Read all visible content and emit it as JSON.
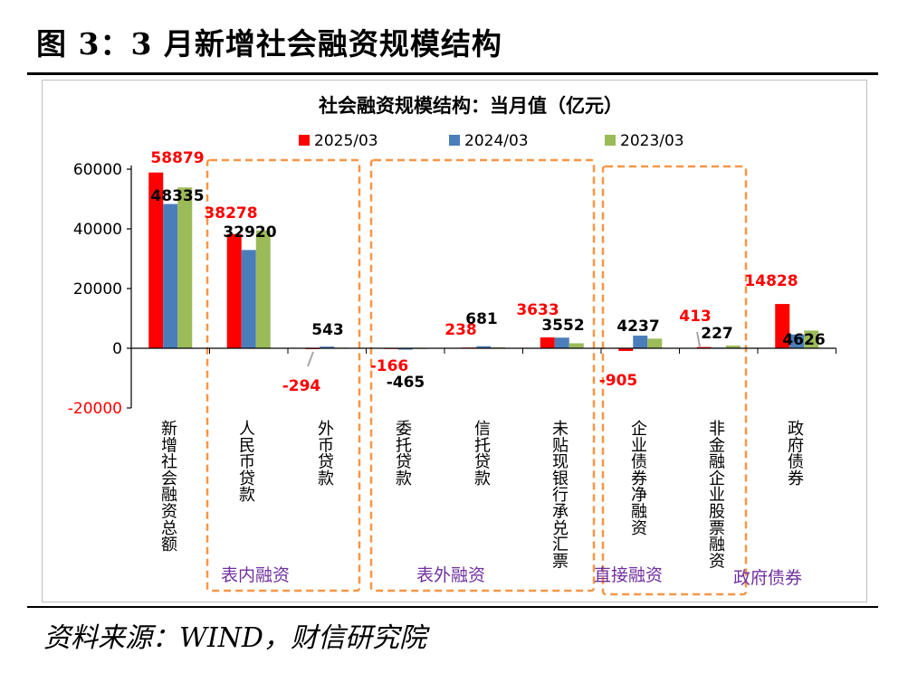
{
  "figure": {
    "title": "图 3：3 月新增社会融资规模结构",
    "source": "资料来源：WIND，财信研究院"
  },
  "colors": {
    "s2025": "#ff0000",
    "s2024": "#4a7ebb",
    "s2023": "#9bbb59",
    "label2025": "#ff0000",
    "label_other": "#000000",
    "group_box": "#f79646",
    "group_label": "#7030a0",
    "axis": "#000000"
  },
  "chart_data": {
    "type": "bar",
    "title": "社会融资规模结构：当月值（亿元）",
    "categories": [
      "新增社会融资总额",
      "人民币贷款",
      "外币贷款",
      "委托贷款",
      "信托贷款",
      "未贴现银行承兑汇票",
      "企业债券净融资",
      "非金融企业股票融资",
      "政府债券"
    ],
    "series": [
      {
        "name": "2025/03",
        "values": [
          58879,
          38278,
          -294,
          -166,
          238,
          3633,
          -905,
          413,
          14828
        ]
      },
      {
        "name": "2024/03",
        "values": [
          48335,
          32920,
          543,
          -465,
          681,
          3552,
          4237,
          227,
          4626
        ]
      },
      {
        "name": "2023/03",
        "values": [
          53862,
          39463,
          219,
          -48,
          327,
          1670,
          3225,
          889,
          5938
        ]
      }
    ],
    "data_labels": [
      {
        "category": 0,
        "series": 0,
        "text": "58879"
      },
      {
        "category": 0,
        "series": 1,
        "text": "48335"
      },
      {
        "category": 1,
        "series": 0,
        "text": "38278"
      },
      {
        "category": 1,
        "series": 1,
        "text": "32920"
      },
      {
        "category": 2,
        "series": 0,
        "text": "-294"
      },
      {
        "category": 2,
        "series": 1,
        "text": "543"
      },
      {
        "category": 3,
        "series": 0,
        "text": "-166"
      },
      {
        "category": 3,
        "series": 1,
        "text": "-465"
      },
      {
        "category": 4,
        "series": 0,
        "text": "238"
      },
      {
        "category": 4,
        "series": 1,
        "text": "681"
      },
      {
        "category": 5,
        "series": 0,
        "text": "3633"
      },
      {
        "category": 5,
        "series": 1,
        "text": "3552"
      },
      {
        "category": 6,
        "series": 0,
        "text": "-905"
      },
      {
        "category": 6,
        "series": 1,
        "text": "4237"
      },
      {
        "category": 7,
        "series": 0,
        "text": "413"
      },
      {
        "category": 7,
        "series": 1,
        "text": "227"
      },
      {
        "category": 8,
        "series": 0,
        "text": "14828"
      },
      {
        "category": 8,
        "series": 1,
        "text": "4626"
      }
    ],
    "yticks": [
      "60000",
      "40000",
      "20000",
      "0",
      "-20000"
    ],
    "ytick_values": [
      60000,
      40000,
      20000,
      0,
      -20000
    ],
    "ylim": [
      -20000,
      60000
    ],
    "legend": [
      "2025/03",
      "2024/03",
      "2023/03"
    ],
    "legend_position": "top",
    "groups": [
      {
        "label": "表内融资",
        "from": 1,
        "to": 2
      },
      {
        "label": "表外融资",
        "from": 3,
        "to": 5
      },
      {
        "label": "直接融资",
        "from": 6,
        "to": 7
      },
      {
        "label": "政府债券",
        "from": 8,
        "to": 8
      }
    ]
  }
}
